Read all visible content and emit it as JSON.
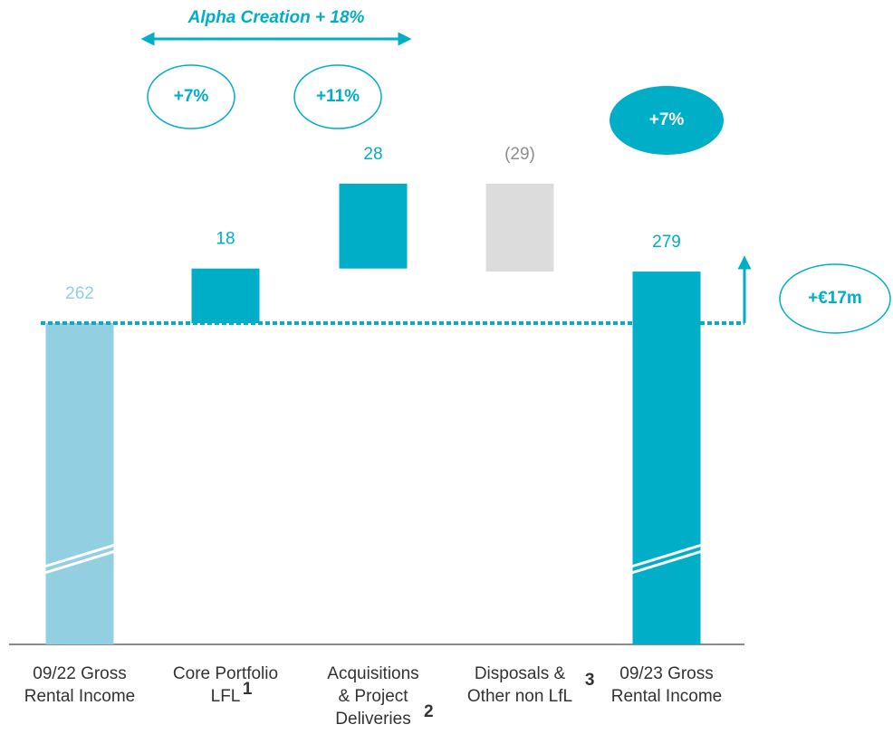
{
  "chart_data": {
    "type": "waterfall",
    "categories": [
      [
        "09/22 Gross",
        "Rental Income"
      ],
      [
        "Core Portfolio",
        "LFL"
      ],
      [
        "Acquisitions",
        "& Project",
        "Deliveries"
      ],
      [
        "Disposals &",
        "Other non LfL"
      ],
      [
        "09/23 Gross",
        "Rental Income"
      ]
    ],
    "category_marks": [
      null,
      "1",
      "2",
      "3",
      null
    ],
    "values": [
      262,
      18,
      28,
      -29,
      279
    ],
    "value_labels": [
      "262",
      "18",
      "28",
      "(29)",
      "279"
    ],
    "kinds": [
      "total",
      "delta",
      "delta",
      "delta",
      "total"
    ],
    "colors": [
      "#92cfe0",
      "#00aec7",
      "#00aec7",
      "#dcdcdc",
      "#00aec7"
    ],
    "label_colors": [
      "#92cfe0",
      "#00aec7",
      "#00aec7",
      "#8c8c8c",
      "#00aec7"
    ],
    "axis_break": true,
    "annotations": {
      "alpha": "Alpha Creation + 18%",
      "core_growth": "+7%",
      "acq_growth": "+11%",
      "total_growth": "+7%",
      "change": "+€17m"
    }
  }
}
